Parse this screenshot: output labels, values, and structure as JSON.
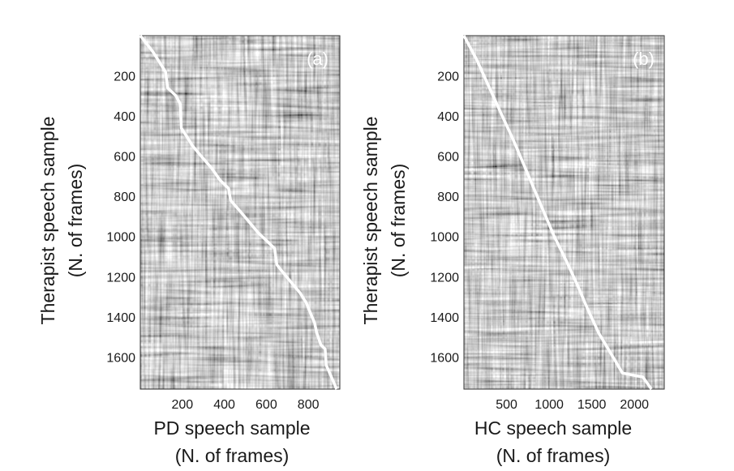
{
  "chart_data": [
    {
      "type": "heatmap",
      "panel_label": "(a)",
      "xlabel_line1": "PD speech sample",
      "xlabel_line2": "(N. of frames)",
      "ylabel_line1": "Therapist speech sample",
      "ylabel_line2": "(N. of frames)",
      "xlim": [
        0,
        950
      ],
      "ylim": [
        1760,
        0
      ],
      "xticks": [
        200,
        400,
        600,
        800
      ],
      "yticks": [
        200,
        400,
        600,
        800,
        1000,
        1200,
        1400,
        1600
      ],
      "path_color": "#ffffff",
      "warping_path": [
        [
          0,
          0
        ],
        [
          60,
          80
        ],
        [
          120,
          180
        ],
        [
          130,
          260
        ],
        [
          170,
          300
        ],
        [
          190,
          340
        ],
        [
          195,
          460
        ],
        [
          220,
          500
        ],
        [
          250,
          550
        ],
        [
          290,
          600
        ],
        [
          340,
          660
        ],
        [
          380,
          720
        ],
        [
          420,
          760
        ],
        [
          430,
          820
        ],
        [
          480,
          880
        ],
        [
          520,
          930
        ],
        [
          560,
          980
        ],
        [
          600,
          1020
        ],
        [
          640,
          1060
        ],
        [
          650,
          1140
        ],
        [
          680,
          1180
        ],
        [
          720,
          1230
        ],
        [
          760,
          1280
        ],
        [
          790,
          1330
        ],
        [
          810,
          1380
        ],
        [
          830,
          1430
        ],
        [
          840,
          1480
        ],
        [
          860,
          1540
        ],
        [
          880,
          1560
        ],
        [
          885,
          1640
        ],
        [
          910,
          1700
        ],
        [
          935,
          1760
        ]
      ]
    },
    {
      "type": "heatmap",
      "panel_label": "(b)",
      "xlabel_line1": "HC speech sample",
      "xlabel_line2": "(N. of frames)",
      "ylabel_line1": "Therapist speech sample",
      "ylabel_line2": "(N. of frames)",
      "xlim": [
        0,
        2350
      ],
      "ylim": [
        1760,
        0
      ],
      "xticks": [
        500,
        1000,
        1500,
        2000
      ],
      "yticks": [
        200,
        400,
        600,
        800,
        1000,
        1200,
        1400,
        1600
      ],
      "path_color": "#ffffff",
      "warping_path": [
        [
          0,
          0
        ],
        [
          150,
          120
        ],
        [
          300,
          260
        ],
        [
          450,
          400
        ],
        [
          580,
          520
        ],
        [
          700,
          640
        ],
        [
          820,
          760
        ],
        [
          940,
          880
        ],
        [
          1060,
          1000
        ],
        [
          1200,
          1120
        ],
        [
          1330,
          1240
        ],
        [
          1450,
          1360
        ],
        [
          1580,
          1480
        ],
        [
          1720,
          1580
        ],
        [
          1860,
          1680
        ],
        [
          2100,
          1700
        ],
        [
          2200,
          1760
        ]
      ]
    }
  ]
}
